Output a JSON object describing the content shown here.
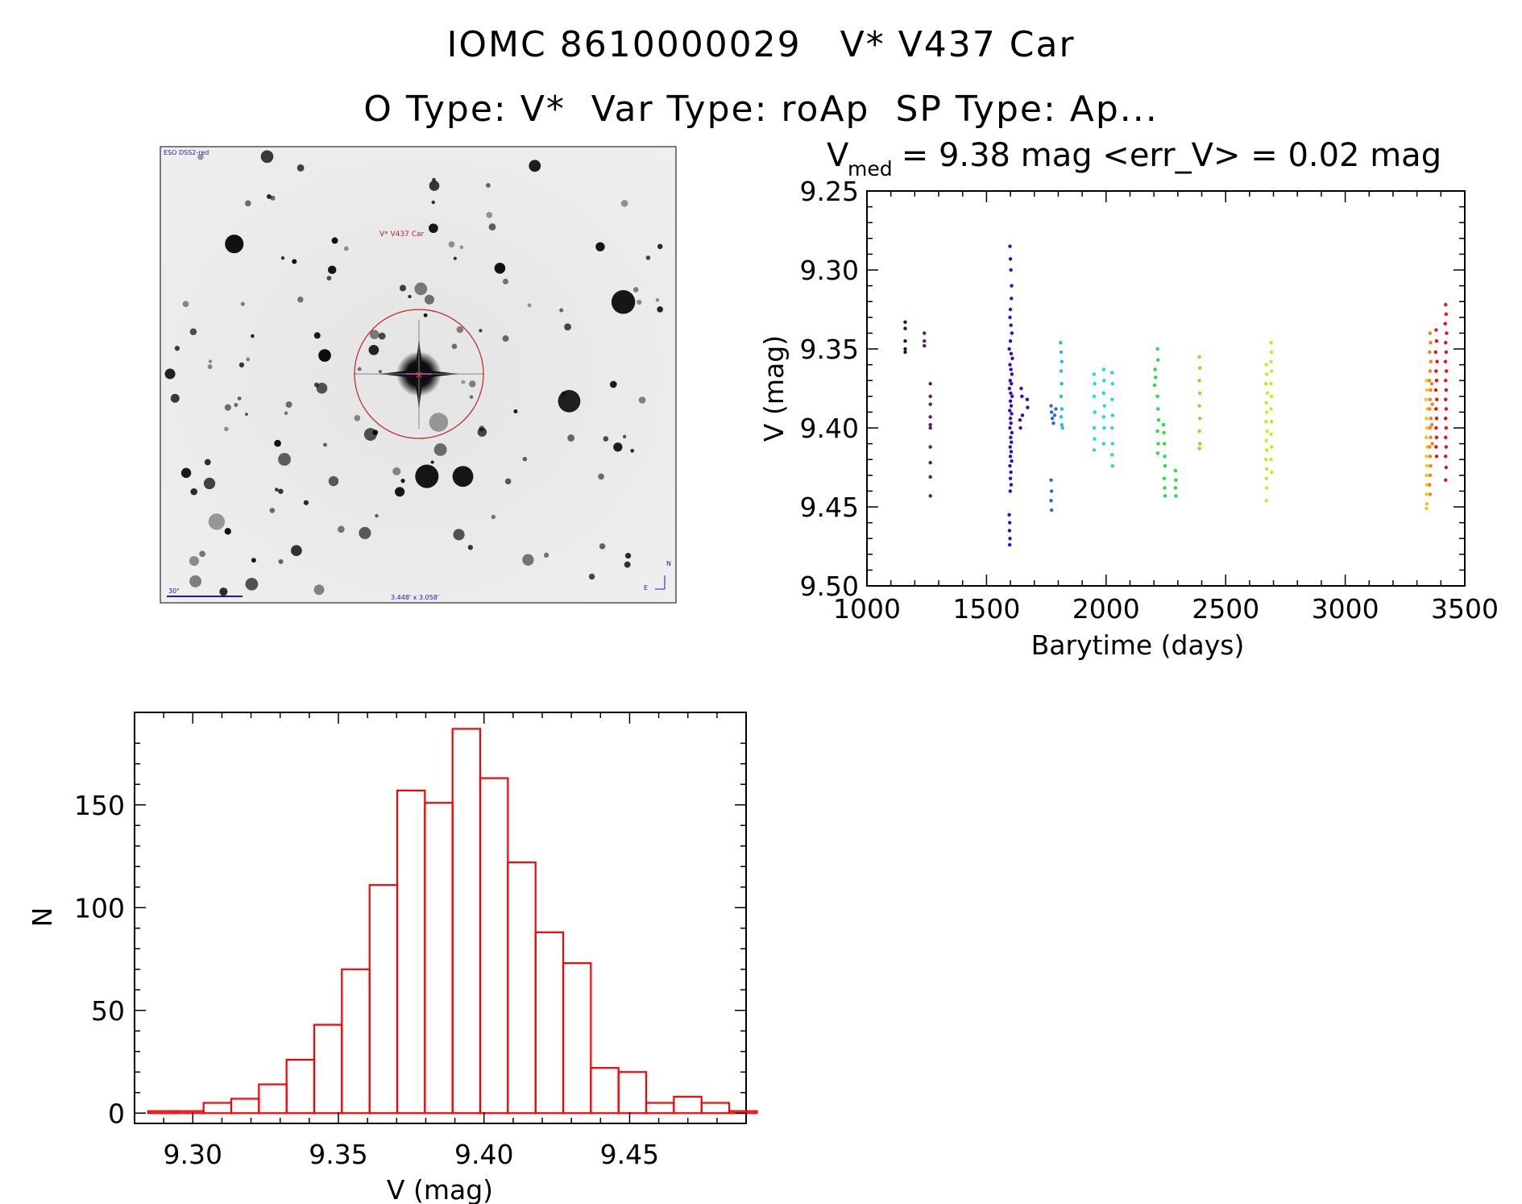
{
  "title": {
    "line1": "IOMC 8610000029   V* V437 Car",
    "line2": "O Type: V*  Var Type: roAp  SP Type: Ap..."
  },
  "image_panel": {
    "survey_label": "ESO DSS2-red",
    "object_label": "V* V437 Car",
    "scale_label": "30\"",
    "fov_label": "3.448' x 3.058'",
    "compass_n": "N",
    "compass_e": "E"
  },
  "chart_data": [
    {
      "type": "scatter",
      "title_prefix": "V",
      "title_sub": "med",
      "title_rest": " = 9.38 mag <err_V> = 0.02 mag",
      "xlabel": "Barytime (days)",
      "ylabel": "V (mag)",
      "xlim": [
        1000,
        3500
      ],
      "ylim": [
        9.25,
        9.5
      ],
      "y_inverted": true,
      "xticks": [
        1000,
        1500,
        2000,
        2500,
        3000,
        3500
      ],
      "yticks": [
        9.25,
        9.3,
        9.35,
        9.4,
        9.45,
        9.5
      ],
      "xtick_labels": [
        "1000",
        "1500",
        "2000",
        "2500",
        "3000",
        "3500"
      ],
      "ytick_labels": [
        "9.25",
        "9.30",
        "9.35",
        "9.40",
        "9.45",
        "9.50"
      ],
      "series": [
        {
          "name": "g1",
          "color": "#3a0a2a",
          "points": [
            [
              1160,
              9.333
            ],
            [
              1160,
              9.337
            ],
            [
              1160,
              9.345
            ],
            [
              1160,
              9.35
            ],
            [
              1160,
              9.352
            ]
          ]
        },
        {
          "name": "g2",
          "color": "#5a1a6a",
          "points": [
            [
              1240,
              9.34
            ],
            [
              1240,
              9.345
            ],
            [
              1240,
              9.348
            ],
            [
              1265,
              9.372
            ],
            [
              1265,
              9.38
            ],
            [
              1265,
              9.385
            ],
            [
              1265,
              9.393
            ],
            [
              1265,
              9.398
            ],
            [
              1265,
              9.4
            ],
            [
              1265,
              9.412
            ],
            [
              1265,
              9.422
            ],
            [
              1265,
              9.431
            ],
            [
              1265,
              9.443
            ]
          ]
        },
        {
          "name": "g3",
          "color": "#2a10c8",
          "points": [
            [
              1598,
              9.285
            ],
            [
              1600,
              9.293
            ],
            [
              1602,
              9.3
            ],
            [
              1605,
              9.31
            ],
            [
              1604,
              9.318
            ],
            [
              1600,
              9.325
            ],
            [
              1598,
              9.33
            ],
            [
              1602,
              9.335
            ],
            [
              1606,
              9.34
            ],
            [
              1600,
              9.345
            ],
            [
              1595,
              9.35
            ],
            [
              1603,
              9.353
            ],
            [
              1608,
              9.356
            ],
            [
              1598,
              9.36
            ],
            [
              1602,
              9.363
            ],
            [
              1606,
              9.366
            ],
            [
              1599,
              9.37
            ],
            [
              1604,
              9.372
            ],
            [
              1596,
              9.375
            ],
            [
              1601,
              9.378
            ],
            [
              1607,
              9.38
            ],
            [
              1600,
              9.383
            ],
            [
              1603,
              9.386
            ],
            [
              1597,
              9.389
            ],
            [
              1605,
              9.391
            ],
            [
              1600,
              9.394
            ],
            [
              1602,
              9.397
            ],
            [
              1598,
              9.4
            ],
            [
              1606,
              9.403
            ],
            [
              1601,
              9.406
            ],
            [
              1604,
              9.409
            ],
            [
              1599,
              9.412
            ],
            [
              1603,
              9.415
            ],
            [
              1600,
              9.418
            ],
            [
              1605,
              9.421
            ],
            [
              1598,
              9.424
            ],
            [
              1602,
              9.428
            ],
            [
              1600,
              9.432
            ],
            [
              1603,
              9.436
            ],
            [
              1599,
              9.44
            ],
            [
              1595,
              9.455
            ],
            [
              1597,
              9.46
            ],
            [
              1596,
              9.465
            ],
            [
              1598,
              9.47
            ],
            [
              1597,
              9.474
            ],
            [
              1645,
              9.375
            ],
            [
              1648,
              9.38
            ],
            [
              1650,
              9.392
            ],
            [
              1670,
              9.382
            ],
            [
              1672,
              9.387
            ],
            [
              1640,
              9.395
            ],
            [
              1642,
              9.4
            ]
          ]
        },
        {
          "name": "g4",
          "color": "#2a6ae0",
          "points": [
            [
              1770,
              9.386
            ],
            [
              1772,
              9.39
            ],
            [
              1775,
              9.394
            ],
            [
              1780,
              9.397
            ],
            [
              1785,
              9.392
            ],
            [
              1790,
              9.388
            ],
            [
              1770,
              9.433
            ],
            [
              1772,
              9.44
            ],
            [
              1770,
              9.446
            ],
            [
              1772,
              9.452
            ]
          ]
        },
        {
          "name": "g5",
          "color": "#28b8f0",
          "points": [
            [
              1810,
              9.346
            ],
            [
              1812,
              9.352
            ],
            [
              1815,
              9.358
            ],
            [
              1812,
              9.364
            ],
            [
              1814,
              9.372
            ],
            [
              1812,
              9.38
            ],
            [
              1815,
              9.388
            ],
            [
              1812,
              9.393
            ],
            [
              1815,
              9.398
            ],
            [
              1818,
              9.4
            ]
          ]
        },
        {
          "name": "g6",
          "color": "#20d8e0",
          "points": [
            [
              1950,
              9.366
            ],
            [
              1952,
              9.372
            ],
            [
              1950,
              9.38
            ],
            [
              1953,
              9.39
            ],
            [
              1950,
              9.4
            ],
            [
              1952,
              9.407
            ],
            [
              1950,
              9.414
            ],
            [
              1990,
              9.363
            ],
            [
              1992,
              9.37
            ],
            [
              1990,
              9.378
            ],
            [
              1993,
              9.386
            ],
            [
              1990,
              9.393
            ],
            [
              1992,
              9.4
            ],
            [
              1990,
              9.41
            ],
            [
              2025,
              9.365
            ],
            [
              2027,
              9.372
            ],
            [
              2025,
              9.382
            ],
            [
              2027,
              9.392
            ],
            [
              2025,
              9.4
            ],
            [
              2027,
              9.41
            ],
            [
              2025,
              9.417
            ],
            [
              2027,
              9.424
            ]
          ]
        },
        {
          "name": "g7",
          "color": "#22e040",
          "points": [
            [
              2205,
              9.363
            ],
            [
              2207,
              9.368
            ],
            [
              2203,
              9.373
            ],
            [
              2215,
              9.35
            ],
            [
              2217,
              9.357
            ],
            [
              2215,
              9.38
            ],
            [
              2217,
              9.388
            ],
            [
              2220,
              9.395
            ],
            [
              2215,
              9.402
            ],
            [
              2218,
              9.41
            ],
            [
              2216,
              9.416
            ],
            [
              2240,
              9.398
            ],
            [
              2242,
              9.403
            ],
            [
              2244,
              9.41
            ],
            [
              2245,
              9.418
            ],
            [
              2247,
              9.424
            ],
            [
              2243,
              9.432
            ],
            [
              2245,
              9.438
            ],
            [
              2247,
              9.443
            ],
            [
              2290,
              9.427
            ],
            [
              2292,
              9.433
            ],
            [
              2290,
              9.438
            ],
            [
              2292,
              9.443
            ]
          ]
        },
        {
          "name": "g8",
          "color": "#8ae020",
          "points": [
            [
              2390,
              9.355
            ],
            [
              2392,
              9.362
            ],
            [
              2390,
              9.37
            ],
            [
              2392,
              9.378
            ],
            [
              2390,
              9.386
            ],
            [
              2392,
              9.394
            ],
            [
              2390,
              9.402
            ],
            [
              2392,
              9.41
            ],
            [
              2390,
              9.413
            ]
          ]
        },
        {
          "name": "g9",
          "color": "#c8e820",
          "points": [
            [
              2670,
              9.36
            ],
            [
              2672,
              9.366
            ],
            [
              2668,
              9.372
            ],
            [
              2674,
              9.378
            ],
            [
              2670,
              9.384
            ],
            [
              2672,
              9.39
            ],
            [
              2669,
              9.396
            ],
            [
              2673,
              9.402
            ],
            [
              2670,
              9.408
            ],
            [
              2672,
              9.414
            ],
            [
              2669,
              9.42
            ],
            [
              2671,
              9.426
            ],
            [
              2670,
              9.432
            ],
            [
              2672,
              9.438
            ],
            [
              2670,
              9.446
            ],
            [
              2690,
              9.346
            ],
            [
              2692,
              9.352
            ],
            [
              2690,
              9.358
            ],
            [
              2692,
              9.364
            ],
            [
              2690,
              9.372
            ],
            [
              2692,
              9.38
            ],
            [
              2690,
              9.388
            ],
            [
              2692,
              9.396
            ],
            [
              2690,
              9.404
            ],
            [
              2692,
              9.412
            ],
            [
              2690,
              9.42
            ],
            [
              2692,
              9.428
            ]
          ]
        },
        {
          "name": "g10",
          "color": "#f8c020",
          "points": [
            [
              3340,
              9.37
            ],
            [
              3342,
              9.376
            ],
            [
              3338,
              9.382
            ],
            [
              3344,
              9.388
            ],
            [
              3340,
              9.394
            ],
            [
              3342,
              9.4
            ],
            [
              3339,
              9.406
            ],
            [
              3343,
              9.412
            ],
            [
              3340,
              9.418
            ],
            [
              3342,
              9.424
            ],
            [
              3340,
              9.43
            ],
            [
              3342,
              9.436
            ],
            [
              3340,
              9.442
            ],
            [
              3342,
              9.448
            ],
            [
              3340,
              9.451
            ]
          ]
        },
        {
          "name": "g11",
          "color": "#f88010",
          "points": [
            [
              3355,
              9.34
            ],
            [
              3357,
              9.346
            ],
            [
              3353,
              9.352
            ],
            [
              3358,
              9.358
            ],
            [
              3355,
              9.364
            ],
            [
              3352,
              9.37
            ],
            [
              3357,
              9.376
            ],
            [
              3355,
              9.382
            ],
            [
              3353,
              9.388
            ],
            [
              3358,
              9.394
            ],
            [
              3355,
              9.4
            ],
            [
              3357,
              9.406
            ],
            [
              3353,
              9.412
            ],
            [
              3355,
              9.418
            ],
            [
              3357,
              9.424
            ],
            [
              3355,
              9.43
            ],
            [
              3353,
              9.436
            ],
            [
              3355,
              9.442
            ],
            [
              3362,
              9.372
            ],
            [
              3364,
              9.385
            ],
            [
              3362,
              9.398
            ],
            [
              3364,
              9.41
            ]
          ]
        },
        {
          "name": "g12",
          "color": "#e81010",
          "points": [
            [
              3380,
              9.338
            ],
            [
              3382,
              9.345
            ],
            [
              3378,
              9.352
            ],
            [
              3384,
              9.358
            ],
            [
              3380,
              9.364
            ],
            [
              3382,
              9.37
            ],
            [
              3379,
              9.376
            ],
            [
              3383,
              9.382
            ],
            [
              3380,
              9.388
            ],
            [
              3382,
              9.394
            ],
            [
              3380,
              9.4
            ],
            [
              3382,
              9.406
            ],
            [
              3380,
              9.412
            ],
            [
              3382,
              9.418
            ],
            [
              3420,
              9.322
            ],
            [
              3422,
              9.328
            ],
            [
              3418,
              9.334
            ],
            [
              3424,
              9.34
            ],
            [
              3420,
              9.346
            ],
            [
              3422,
              9.352
            ],
            [
              3419,
              9.358
            ],
            [
              3423,
              9.364
            ],
            [
              3420,
              9.37
            ],
            [
              3422,
              9.376
            ],
            [
              3420,
              9.382
            ],
            [
              3422,
              9.388
            ],
            [
              3420,
              9.394
            ],
            [
              3422,
              9.4
            ],
            [
              3420,
              9.406
            ],
            [
              3422,
              9.412
            ],
            [
              3420,
              9.418
            ],
            [
              3422,
              9.425
            ],
            [
              3420,
              9.433
            ]
          ]
        }
      ]
    },
    {
      "type": "histogram",
      "xlabel": "V (mag)",
      "ylabel": "N",
      "xlim": [
        9.28,
        9.49
      ],
      "ylim": [
        -5,
        195
      ],
      "xticks": [
        9.3,
        9.35,
        9.4,
        9.45
      ],
      "xtick_labels": [
        "9.30",
        "9.35",
        "9.40",
        "9.45"
      ],
      "yticks": [
        0,
        50,
        100,
        150
      ],
      "ytick_labels": [
        "0",
        "50",
        "100",
        "150"
      ],
      "bin_width": 0.0095,
      "bin_start": 9.2847,
      "values": [
        1,
        1,
        5,
        7,
        14,
        26,
        43,
        70,
        111,
        157,
        151,
        187,
        163,
        122,
        88,
        73,
        22,
        20,
        5,
        8,
        5,
        1
      ],
      "color": "#ff0000"
    }
  ]
}
